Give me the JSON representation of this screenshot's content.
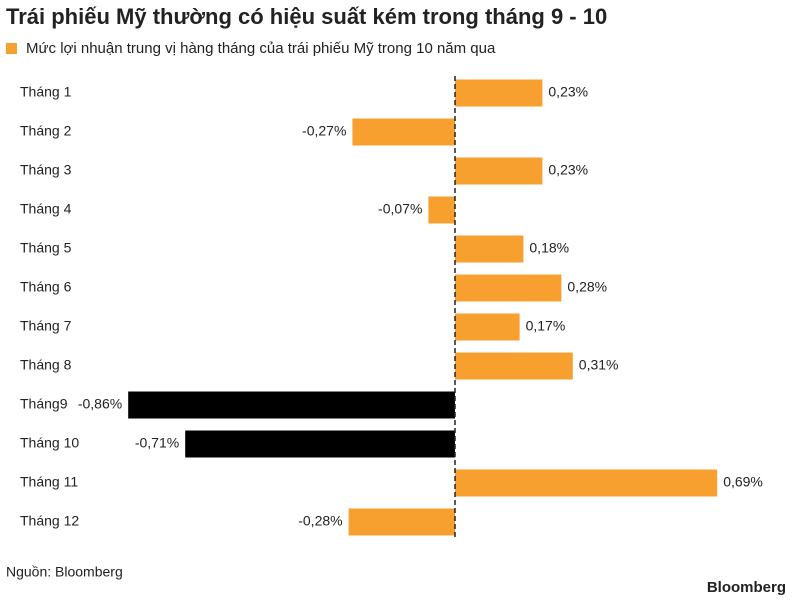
{
  "chart_data": {
    "type": "bar",
    "orientation": "horizontal",
    "title": "Trái phiếu Mỹ thường có hiệu suất kém trong tháng 9 - 10",
    "series_name": "Mức lợi nhuận trung vị hàng tháng của trái phiếu Mỹ trong 10 năm qua",
    "categories": [
      "Tháng 1",
      "Tháng 2",
      "Tháng 3",
      "Tháng 4",
      "Tháng 5",
      "Tháng 6",
      "Tháng 7",
      "Tháng 8",
      "Tháng9",
      "Tháng 10",
      "Tháng 11",
      "Tháng 12"
    ],
    "values": [
      0.23,
      -0.27,
      0.23,
      -0.07,
      0.18,
      0.28,
      0.17,
      0.31,
      -0.86,
      -0.71,
      0.69,
      -0.28
    ],
    "value_labels": [
      "0,23%",
      "-0,27%",
      "0,23%",
      "-0,07%",
      "0,18%",
      "0,28%",
      "0,17%",
      "0,31%",
      "-0,86%",
      "-0,71%",
      "0,69%",
      "-0,28%"
    ],
    "colors": [
      "#f7a030",
      "#f7a030",
      "#f7a030",
      "#f7a030",
      "#f7a030",
      "#f7a030",
      "#f7a030",
      "#f7a030",
      "#000000",
      "#000000",
      "#f7a030",
      "#f7a030"
    ],
    "legend_color": "#f7a030",
    "xlim": [
      -1,
      0.8
    ],
    "source": "Nguồn: Bloomberg",
    "brand": "Bloomberg"
  }
}
